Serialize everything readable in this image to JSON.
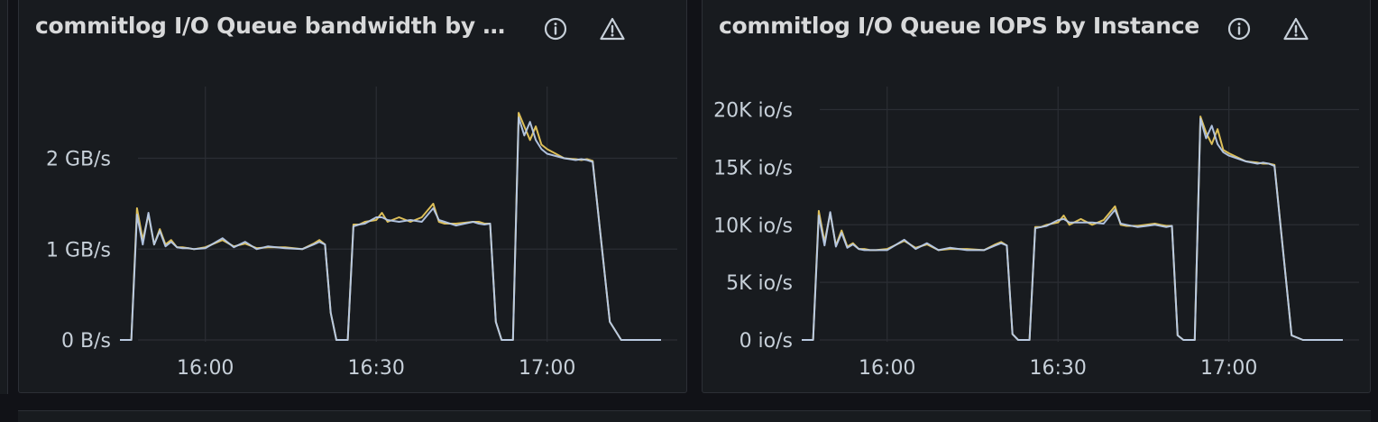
{
  "colors": {
    "background": "#111217",
    "panel": "#181b1f",
    "border": "#2c2f36",
    "grid": "#2b2e34",
    "text": "#d8d9da",
    "series_a": "#e8c85c",
    "series_b": "#b6c9e8"
  },
  "icons": {
    "info": "info-circle-icon",
    "warning": "warning-triangle-icon"
  },
  "panels": [
    {
      "title": "commitlog I/O Queue bandwidth by I..."
    },
    {
      "title": "commitlog I/O Queue IOPS by Instance"
    }
  ],
  "chart_data": [
    {
      "type": "line",
      "title": "commitlog I/O Queue bandwidth by I...",
      "xlabel": "",
      "ylabel": "",
      "x_range": [
        "15:45",
        "17:20"
      ],
      "x_ticks": [
        "16:00",
        "16:30",
        "17:00"
      ],
      "y_unit": "GB/s",
      "y_ticks": [
        {
          "value": 0,
          "label": "0 B/s"
        },
        {
          "value": 1,
          "label": "1 GB/s"
        },
        {
          "value": 2,
          "label": "2 GB/s"
        }
      ],
      "ylim": [
        0,
        2.8
      ],
      "grid": true,
      "legend": "none",
      "series": [
        {
          "x": [
            "15:45",
            "15:47",
            "15:48",
            "15:49",
            "15:50",
            "15:51",
            "15:52",
            "15:53",
            "15:54",
            "15:55",
            "15:56",
            "15:57",
            "15:58",
            "16:00",
            "16:03",
            "16:05",
            "16:07",
            "16:09",
            "16:11",
            "16:14",
            "16:17",
            "16:19",
            "16:20",
            "16:21",
            "16:22",
            "16:23",
            "16:24",
            "16:25",
            "16:26",
            "16:27",
            "16:28",
            "16:30",
            "16:31",
            "16:32",
            "16:34",
            "16:36",
            "16:38",
            "16:40",
            "16:41",
            "16:42",
            "16:44",
            "16:47",
            "16:48",
            "16:49",
            "16:50",
            "16:51",
            "16:52",
            "16:53",
            "16:54",
            "16:55",
            "16:56",
            "16:57",
            "16:58",
            "16:59",
            "17:00",
            "17:03",
            "17:05",
            "17:06",
            "17:07",
            "17:08",
            "17:11",
            "17:13",
            "17:20"
          ],
          "values": [
            0,
            0,
            1.45,
            1.1,
            1.38,
            1.05,
            1.22,
            1.05,
            1.1,
            1.02,
            1.02,
            1.01,
            1.0,
            1.02,
            1.1,
            1.03,
            1.06,
            1.01,
            1.02,
            1.02,
            1.0,
            1.06,
            1.1,
            1.05,
            0.3,
            0,
            0,
            0,
            1.27,
            1.27,
            1.3,
            1.32,
            1.4,
            1.3,
            1.35,
            1.3,
            1.35,
            1.5,
            1.3,
            1.28,
            1.28,
            1.3,
            1.3,
            1.28,
            1.28,
            0.2,
            0,
            0,
            0,
            2.5,
            2.35,
            2.2,
            2.35,
            2.15,
            2.1,
            2.0,
            1.99,
            1.98,
            1.99,
            1.97,
            0.2,
            0,
            0
          ]
        },
        {
          "x": [
            "15:45",
            "15:47",
            "15:48",
            "15:49",
            "15:50",
            "15:51",
            "15:52",
            "15:53",
            "15:54",
            "15:55",
            "15:56",
            "15:57",
            "15:58",
            "16:00",
            "16:03",
            "16:05",
            "16:07",
            "16:09",
            "16:11",
            "16:14",
            "16:17",
            "16:19",
            "16:20",
            "16:21",
            "16:22",
            "16:23",
            "16:24",
            "16:25",
            "16:26",
            "16:27",
            "16:28",
            "16:30",
            "16:31",
            "16:32",
            "16:34",
            "16:36",
            "16:38",
            "16:40",
            "16:41",
            "16:42",
            "16:44",
            "16:47",
            "16:48",
            "16:49",
            "16:50",
            "16:51",
            "16:52",
            "16:53",
            "16:54",
            "16:55",
            "16:56",
            "16:57",
            "16:58",
            "16:59",
            "17:00",
            "17:03",
            "17:05",
            "17:06",
            "17:07",
            "17:08",
            "17:11",
            "17:13",
            "17:20"
          ],
          "values": [
            0,
            0,
            1.38,
            1.05,
            1.4,
            1.05,
            1.2,
            1.03,
            1.08,
            1.02,
            1.01,
            1.01,
            1.0,
            1.01,
            1.12,
            1.02,
            1.08,
            1.0,
            1.03,
            1.01,
            1.0,
            1.05,
            1.08,
            1.05,
            0.3,
            0,
            0,
            0,
            1.25,
            1.27,
            1.28,
            1.35,
            1.35,
            1.32,
            1.3,
            1.32,
            1.3,
            1.45,
            1.32,
            1.3,
            1.26,
            1.3,
            1.28,
            1.27,
            1.28,
            0.2,
            0,
            0,
            0,
            2.45,
            2.25,
            2.4,
            2.2,
            2.1,
            2.05,
            2.0,
            1.98,
            1.99,
            1.98,
            1.96,
            0.2,
            0,
            0
          ]
        }
      ]
    },
    {
      "type": "line",
      "title": "commitlog I/O Queue IOPS by Instance",
      "xlabel": "",
      "ylabel": "",
      "x_range": [
        "15:45",
        "17:20"
      ],
      "x_ticks": [
        "16:00",
        "16:30",
        "17:00"
      ],
      "y_unit": "K io/s",
      "y_ticks": [
        {
          "value": 0,
          "label": "0 io/s"
        },
        {
          "value": 5,
          "label": "5K io/s"
        },
        {
          "value": 10,
          "label": "10K io/s"
        },
        {
          "value": 15,
          "label": "15K io/s"
        },
        {
          "value": 20,
          "label": "20K io/s"
        }
      ],
      "ylim": [
        0,
        22
      ],
      "grid": true,
      "legend": "none",
      "series": [
        {
          "x": [
            "15:45",
            "15:47",
            "15:48",
            "15:49",
            "15:50",
            "15:51",
            "15:52",
            "15:53",
            "15:54",
            "15:55",
            "15:56",
            "15:57",
            "15:58",
            "16:00",
            "16:03",
            "16:05",
            "16:07",
            "16:09",
            "16:11",
            "16:14",
            "16:17",
            "16:19",
            "16:20",
            "16:21",
            "16:22",
            "16:23",
            "16:24",
            "16:25",
            "16:26",
            "16:27",
            "16:28",
            "16:30",
            "16:31",
            "16:32",
            "16:34",
            "16:36",
            "16:38",
            "16:40",
            "16:41",
            "16:42",
            "16:44",
            "16:47",
            "16:48",
            "16:49",
            "16:50",
            "16:51",
            "16:52",
            "16:53",
            "16:54",
            "16:55",
            "16:56",
            "16:57",
            "16:58",
            "16:59",
            "17:00",
            "17:03",
            "17:05",
            "17:06",
            "17:07",
            "17:08",
            "17:11",
            "17:13",
            "17:20"
          ],
          "values": [
            0,
            0,
            11.2,
            8.5,
            11.0,
            8.2,
            9.5,
            8.1,
            8.4,
            7.9,
            7.9,
            7.8,
            7.8,
            7.9,
            8.6,
            8.0,
            8.3,
            7.8,
            7.9,
            7.9,
            7.8,
            8.3,
            8.5,
            8.2,
            0.5,
            0,
            0,
            0,
            9.8,
            9.8,
            10.0,
            10.2,
            10.8,
            10.0,
            10.5,
            10.0,
            10.4,
            11.6,
            10.0,
            9.9,
            9.9,
            10.1,
            10.0,
            9.9,
            9.9,
            0.4,
            0,
            0,
            0,
            19.4,
            18.0,
            17.0,
            18.3,
            16.5,
            16.2,
            15.5,
            15.4,
            15.3,
            15.3,
            15.2,
            0.4,
            0,
            0
          ]
        },
        {
          "x": [
            "15:45",
            "15:47",
            "15:48",
            "15:49",
            "15:50",
            "15:51",
            "15:52",
            "15:53",
            "15:54",
            "15:55",
            "15:56",
            "15:57",
            "15:58",
            "16:00",
            "16:03",
            "16:05",
            "16:07",
            "16:09",
            "16:11",
            "16:14",
            "16:17",
            "16:19",
            "16:20",
            "16:21",
            "16:22",
            "16:23",
            "16:24",
            "16:25",
            "16:26",
            "16:27",
            "16:28",
            "16:30",
            "16:31",
            "16:32",
            "16:34",
            "16:36",
            "16:38",
            "16:40",
            "16:41",
            "16:42",
            "16:44",
            "16:47",
            "16:48",
            "16:49",
            "16:50",
            "16:51",
            "16:52",
            "16:53",
            "16:54",
            "16:55",
            "16:56",
            "16:57",
            "16:58",
            "16:59",
            "17:00",
            "17:03",
            "17:05",
            "17:06",
            "17:07",
            "17:08",
            "17:11",
            "17:13",
            "17:20"
          ],
          "values": [
            0,
            0,
            10.8,
            8.2,
            11.1,
            8.1,
            9.3,
            8.0,
            8.3,
            7.9,
            7.8,
            7.8,
            7.8,
            7.8,
            8.7,
            7.9,
            8.4,
            7.8,
            8.0,
            7.8,
            7.8,
            8.2,
            8.4,
            8.2,
            0.5,
            0,
            0,
            0,
            9.7,
            9.8,
            9.9,
            10.4,
            10.5,
            10.2,
            10.2,
            10.2,
            10.1,
            11.3,
            10.1,
            10.0,
            9.8,
            10.0,
            9.9,
            9.8,
            9.9,
            0.4,
            0,
            0,
            0,
            19.2,
            17.5,
            18.6,
            17.0,
            16.3,
            16.0,
            15.5,
            15.3,
            15.4,
            15.3,
            15.1,
            0.4,
            0,
            0
          ]
        }
      ]
    }
  ]
}
